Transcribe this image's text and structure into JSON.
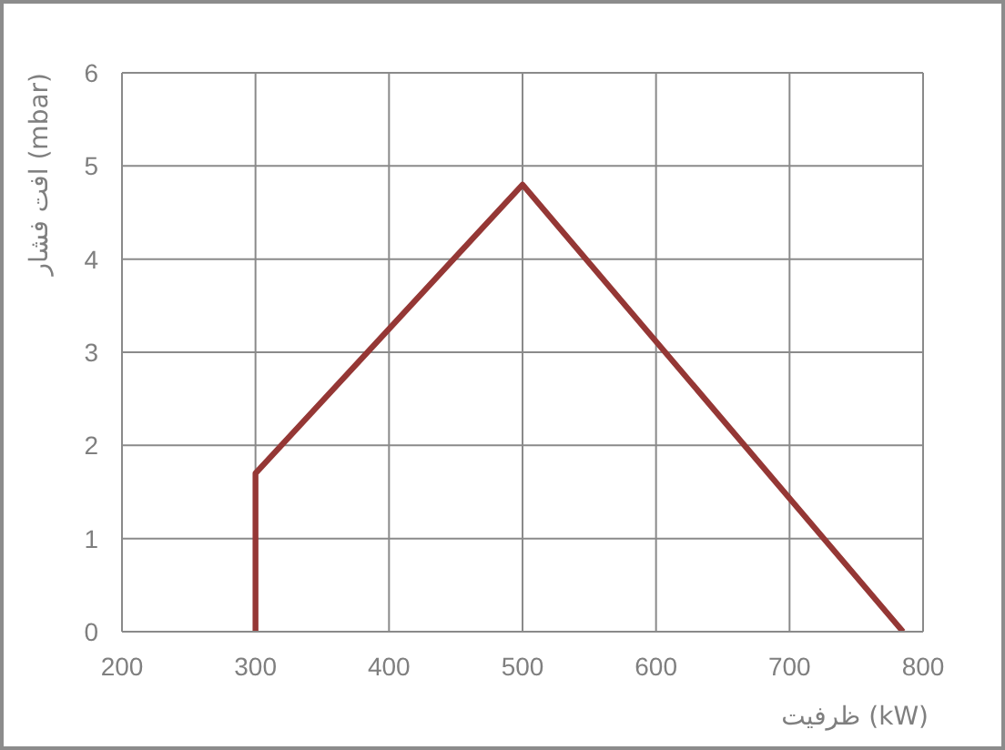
{
  "chart_data": {
    "type": "line",
    "xlabel": "ظرفیت (kW)",
    "ylabel": "افت فشار (mbar)",
    "x": [
      300,
      300,
      500,
      785
    ],
    "series": [
      {
        "color": "#953735",
        "values": [
          0,
          1.7,
          4.8,
          0
        ]
      }
    ],
    "xlim": [
      200,
      800
    ],
    "xticks": [
      200,
      300,
      400,
      500,
      600,
      700,
      800
    ],
    "ylim": [
      0,
      6
    ],
    "yticks": [
      0,
      1,
      2,
      3,
      4,
      5,
      6
    ],
    "grid": true,
    "marker": "none",
    "line_style": "solid"
  }
}
